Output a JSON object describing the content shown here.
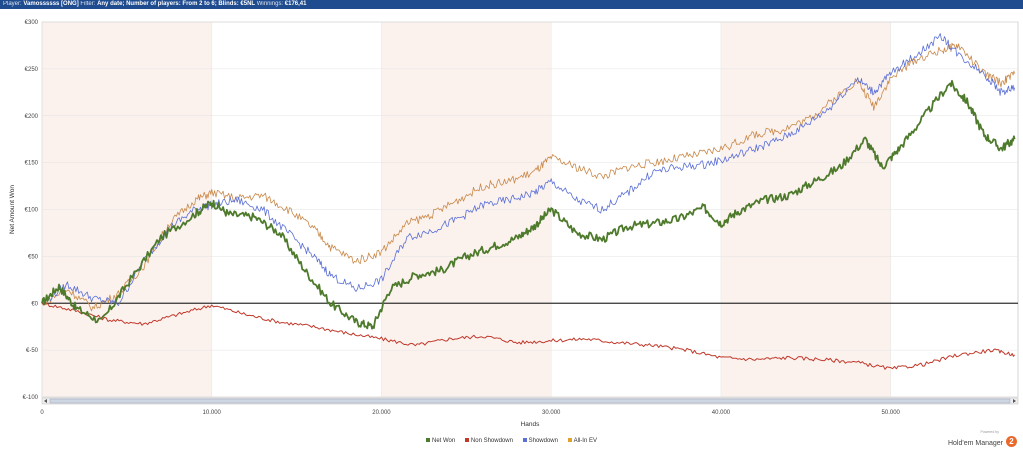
{
  "header": {
    "player_label": "Player:",
    "player": "Vamossssss [ONG]",
    "filter_label": "Filter:",
    "filter": "Any date; Number of players: From 2 to 6; Blinds: €5NL",
    "winnings_label": "Winnings:",
    "winnings": "€176,41"
  },
  "chart_data": {
    "type": "line",
    "xlabel": "Hands",
    "ylabel": "Net Amount Won",
    "xlim": [
      0,
      57500
    ],
    "ylim": [
      -100,
      300
    ],
    "x_ticks": [
      0,
      10000,
      20000,
      30000,
      40000,
      50000
    ],
    "x_tick_labels": [
      "0",
      "10.000",
      "20.000",
      "30.000",
      "40.000",
      "50.000"
    ],
    "y_ticks": [
      -100,
      -50,
      0,
      50,
      100,
      150,
      200,
      250,
      300
    ],
    "y_tick_labels": [
      "€-100",
      "€-50",
      "€0",
      "€50",
      "€100",
      "€150",
      "€200",
      "€250",
      "€300"
    ],
    "grid": true,
    "legend_position": "bottom",
    "series": [
      {
        "name": "Net Won",
        "color": "#4e7a2c",
        "x": [
          0,
          1000,
          2000,
          3500,
          5000,
          7000,
          9000,
          10000,
          11000,
          12500,
          14000,
          15500,
          17000,
          18500,
          19500,
          20500,
          22000,
          23500,
          25000,
          26500,
          28000,
          29000,
          30000,
          31500,
          33000,
          34500,
          36000,
          37500,
          39000,
          40000,
          41000,
          42500,
          44000,
          45500,
          47000,
          48500,
          49500,
          50500,
          52000,
          53500,
          54500,
          55500,
          56500,
          57300
        ],
        "values": [
          0,
          18,
          -5,
          -20,
          20,
          70,
          95,
          108,
          95,
          92,
          75,
          35,
          0,
          -20,
          -25,
          15,
          30,
          35,
          50,
          60,
          70,
          82,
          100,
          75,
          68,
          82,
          85,
          90,
          102,
          85,
          98,
          110,
          115,
          130,
          145,
          175,
          145,
          165,
          200,
          235,
          215,
          180,
          165,
          175
        ]
      },
      {
        "name": "Non Showdown",
        "color": "#c0392b",
        "x": [
          0,
          2000,
          4000,
          6000,
          8000,
          10000,
          12000,
          14000,
          16000,
          18000,
          20000,
          22000,
          24000,
          26000,
          28000,
          30000,
          32000,
          34000,
          36000,
          38000,
          40000,
          42000,
          44000,
          46000,
          48000,
          50000,
          52000,
          54000,
          56000,
          57300
        ],
        "values": [
          0,
          -8,
          -18,
          -22,
          -12,
          -2,
          -12,
          -20,
          -25,
          -32,
          -38,
          -45,
          -38,
          -35,
          -42,
          -40,
          -38,
          -42,
          -45,
          -50,
          -58,
          -60,
          -58,
          -60,
          -63,
          -70,
          -65,
          -55,
          -50,
          -55
        ]
      },
      {
        "name": "Showdown",
        "color": "#5b6fd6",
        "x": [
          0,
          1500,
          3000,
          4500,
          6000,
          7500,
          9000,
          10000,
          11500,
          13000,
          14500,
          16000,
          17000,
          18500,
          20000,
          21500,
          23000,
          24500,
          26000,
          27500,
          29000,
          30000,
          31500,
          33000,
          34500,
          36000,
          37500,
          39000,
          40500,
          42000,
          43500,
          45000,
          46500,
          48000,
          49000,
          50000,
          51500,
          53000,
          54000,
          55500,
          56500,
          57300
        ],
        "values": [
          0,
          20,
          5,
          0,
          45,
          80,
          100,
          105,
          110,
          100,
          75,
          50,
          30,
          15,
          25,
          70,
          78,
          90,
          105,
          110,
          118,
          130,
          110,
          100,
          118,
          140,
          145,
          148,
          155,
          165,
          175,
          190,
          210,
          240,
          225,
          245,
          265,
          285,
          265,
          245,
          225,
          230
        ]
      },
      {
        "name": "All-In EV",
        "color": "#c9894a",
        "x": [
          0,
          1500,
          3000,
          4500,
          6000,
          7500,
          9000,
          10000,
          11500,
          13000,
          14500,
          16000,
          17000,
          18500,
          20000,
          21500,
          23000,
          24500,
          26000,
          27500,
          29000,
          30000,
          31500,
          33000,
          34500,
          36000,
          37500,
          39000,
          40500,
          42000,
          43500,
          45000,
          46500,
          48000,
          49000,
          50000,
          51500,
          53000,
          54000,
          55500,
          56500,
          57300
        ],
        "values": [
          0,
          15,
          -5,
          10,
          40,
          85,
          110,
          118,
          112,
          115,
          100,
          80,
          60,
          45,
          55,
          85,
          95,
          110,
          125,
          130,
          140,
          155,
          145,
          135,
          145,
          150,
          155,
          160,
          168,
          180,
          185,
          195,
          215,
          238,
          210,
          240,
          260,
          270,
          275,
          245,
          235,
          245
        ]
      }
    ]
  },
  "legend": [
    "Net Won",
    "Non Showdown",
    "Showdown",
    "All-In EV"
  ],
  "brand": {
    "powered": "Powered by",
    "name": "Hold'em Manager",
    "logo": "2"
  }
}
